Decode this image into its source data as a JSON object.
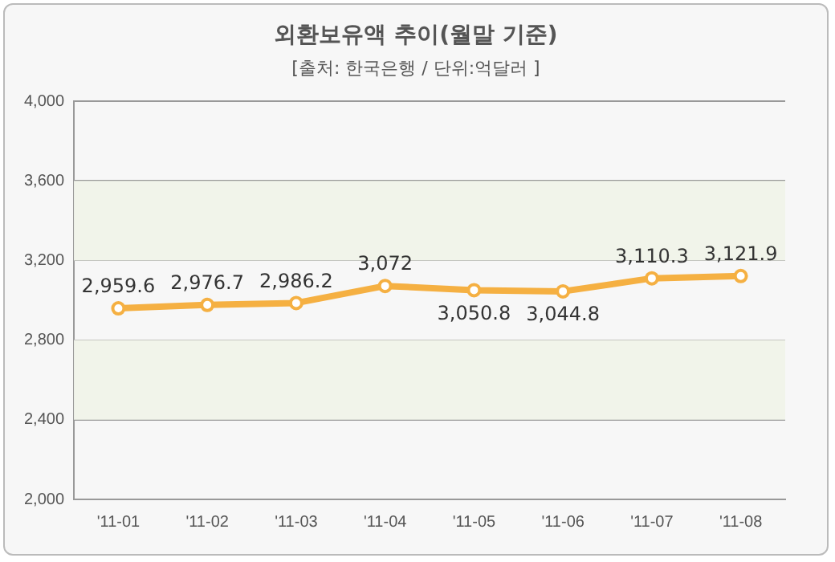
{
  "chart_data": {
    "type": "line",
    "title": "외환보유액 추이(월말 기준)",
    "subtitle": "[출처: 한국은행 / 단위:억달러 ]",
    "categories": [
      "'11-01",
      "'11-02",
      "'11-03",
      "'11-04",
      "'11-05",
      "'11-06",
      "'11-07",
      "'11-08"
    ],
    "series": [
      {
        "color": "#f5b042",
        "values": [
          2959.6,
          2976.7,
          2986.2,
          3072,
          3050.8,
          3044.8,
          3110.3,
          3121.9
        ],
        "value_labels": [
          "2,959.6",
          "2,976.7",
          "2,986.2",
          "3,072",
          "3,050.8",
          "3,044.8",
          "3,110.3",
          "3,121.9"
        ]
      }
    ],
    "ylim": [
      2000,
      4000
    ],
    "yticks": [
      {
        "value": 2000,
        "label": "2,000"
      },
      {
        "value": 2400,
        "label": "2,400"
      },
      {
        "value": 2800,
        "label": "2,800"
      },
      {
        "value": 3200,
        "label": "3,200"
      },
      {
        "value": 3600,
        "label": "3,600"
      },
      {
        "value": 4000,
        "label": "4,000"
      }
    ],
    "bands": [
      {
        "axis": "y",
        "from": 2400,
        "to": 2800,
        "color": "#f1f4ea"
      },
      {
        "axis": "y",
        "from": 3200,
        "to": 3600,
        "color": "#f1f4ea"
      }
    ],
    "grid": "y",
    "marker": "circle",
    "line_style": "solid",
    "legend": false
  }
}
